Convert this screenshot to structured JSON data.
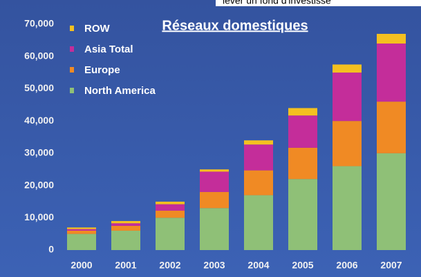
{
  "chart_data": {
    "type": "stacked_bar",
    "title": "Réseaux domestiques",
    "annotation": "lever un fond d'investisse",
    "categories": [
      "2000",
      "2001",
      "2002",
      "2003",
      "2004",
      "2005",
      "2006",
      "2007"
    ],
    "series": [
      {
        "name": "North America",
        "color": "#8fc077",
        "values": [
          5000,
          6000,
          10000,
          13000,
          17000,
          22000,
          26000,
          30000
        ]
      },
      {
        "name": "Europe",
        "color": "#f08a24",
        "values": [
          1000,
          1500,
          2200,
          5000,
          7700,
          9700,
          14000,
          16000
        ]
      },
      {
        "name": "Asia Total",
        "color": "#c42d9a",
        "values": [
          500,
          800,
          2000,
          6300,
          8000,
          10000,
          15000,
          18000
        ]
      },
      {
        "name": "ROW",
        "color": "#f4c020",
        "values": [
          500,
          700,
          800,
          700,
          1300,
          2300,
          2500,
          3000
        ]
      }
    ],
    "ylim": [
      0,
      70000
    ],
    "yticks": [
      0,
      {
        "value": 10000,
        "label": "10,000"
      },
      {
        "value": 20000,
        "label": "20,000"
      },
      {
        "value": 30000,
        "label": "30,000"
      },
      {
        "value": 40000,
        "label": "40,000"
      },
      {
        "value": 50000,
        "label": "50,000"
      },
      {
        "value": 60000,
        "label": "60,000"
      },
      {
        "value": 70000,
        "label": "70,000"
      }
    ],
    "legend": "upper-left"
  }
}
